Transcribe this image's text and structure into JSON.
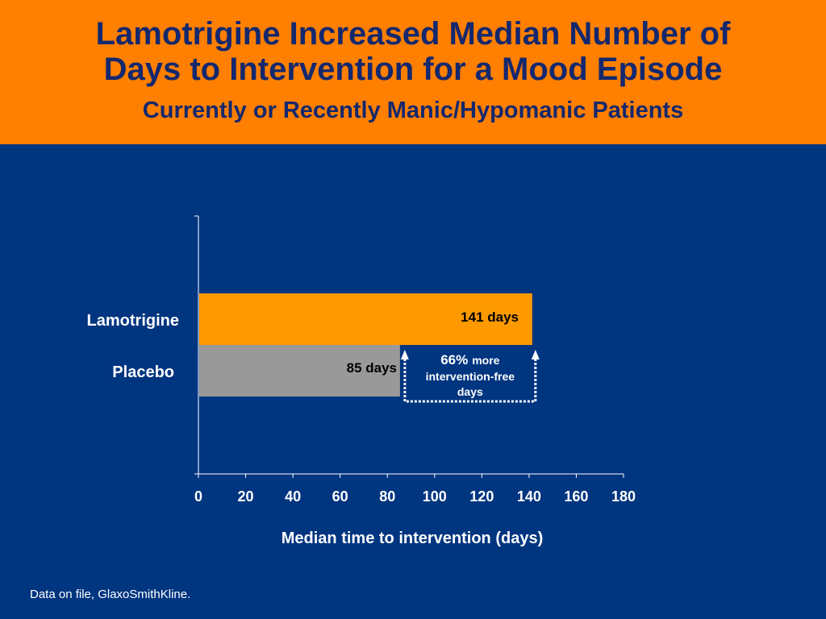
{
  "header": {
    "title_line1": "Lamotrigine Increased Median Number of",
    "title_line2": "Days to Intervention for a Mood Episode",
    "subtitle": "Currently or Recently Manic/Hypomanic Patients"
  },
  "chart_data": {
    "type": "bar",
    "orientation": "horizontal",
    "categories": [
      "Lamotrigine",
      "Placebo"
    ],
    "values": [
      141,
      85
    ],
    "value_labels": [
      "141 days",
      "85 days"
    ],
    "bar_colors": [
      "#FF9900",
      "#999999"
    ],
    "xlabel": "Median time to intervention (days)",
    "xlim": [
      0,
      180
    ],
    "xticks": [
      0,
      20,
      40,
      60,
      80,
      100,
      120,
      140,
      160,
      180
    ],
    "grid": false,
    "legend": "none",
    "annotation": {
      "percent": "66%",
      "text_line1": "more",
      "text_line2": "intervention-free",
      "text_line3": "days",
      "from": 85,
      "to": 141
    }
  },
  "footer": {
    "source": "Data on file, GlaxoSmithKline."
  },
  "colors": {
    "header_bg": "#FF7F00",
    "title": "#14286E",
    "background": "#003580",
    "axis": "#ffffff"
  }
}
